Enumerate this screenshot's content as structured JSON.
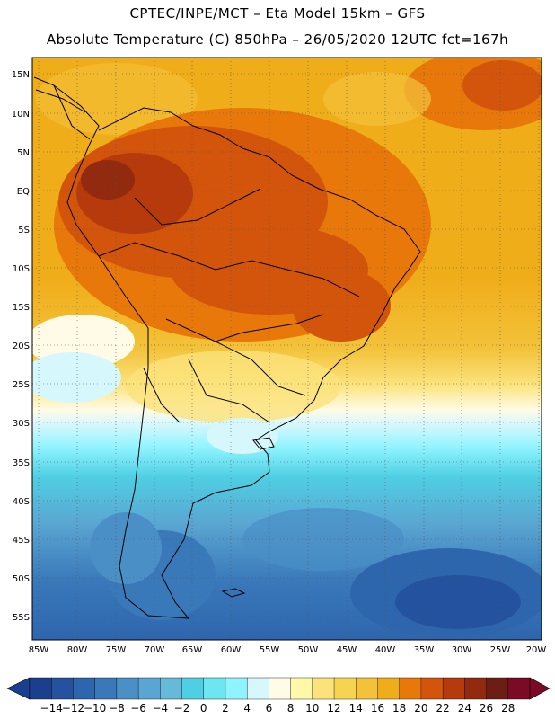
{
  "header": {
    "line1": "CPTEC/INPE/MCT –  Eta Model 15km – GFS",
    "line2": "Absolute Temperature (C) 850hPa – 26/05/2020 12UTC fct=167h"
  },
  "map": {
    "lat_labels": [
      "15N",
      "10N",
      "5N",
      "EQ",
      "5S",
      "10S",
      "15S",
      "20S",
      "25S",
      "30S",
      "35S",
      "40S",
      "45S",
      "50S",
      "55S"
    ],
    "lon_labels": [
      "85W",
      "80W",
      "75W",
      "70W",
      "65W",
      "60W",
      "55W",
      "50W",
      "45W",
      "40W",
      "35W",
      "30W",
      "25W",
      "20W"
    ]
  },
  "colorbar": {
    "labels": [
      "-14",
      "-12",
      "-10",
      "-8",
      "-6",
      "-4",
      "-2",
      "0",
      "2",
      "4",
      "6",
      "8",
      "10",
      "12",
      "14",
      "16",
      "18",
      "20",
      "22",
      "24",
      "26",
      "28"
    ],
    "colors": [
      "#1b3f8f",
      "#24529f",
      "#2e66ae",
      "#3978b9",
      "#4a8fc6",
      "#5aa6d2",
      "#66bad9",
      "#4fcfe3",
      "#6ee6f2",
      "#8ff4ff",
      "#d6f7fc",
      "#fffbe6",
      "#fff8a8",
      "#fbe27a",
      "#f6d44f",
      "#f3c23a",
      "#f0ad1a",
      "#e8780a",
      "#d3540b",
      "#b63a0c",
      "#912a0f",
      "#6c1e14",
      "#7a0a25"
    ]
  }
}
